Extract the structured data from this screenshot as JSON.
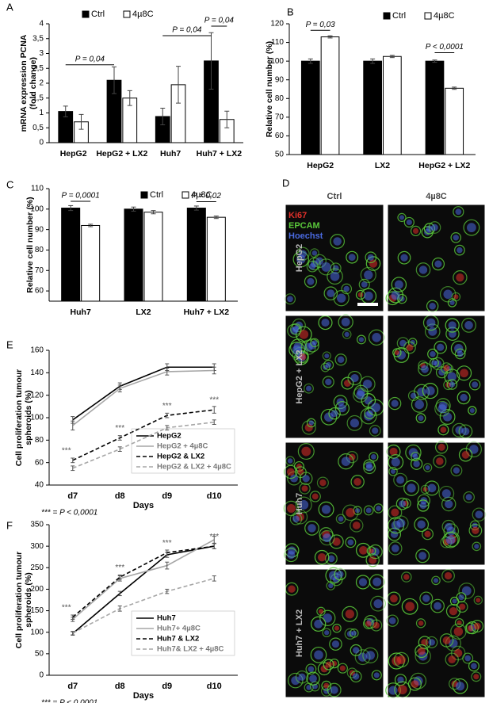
{
  "panels": [
    "A",
    "B",
    "C",
    "D",
    "E",
    "F"
  ],
  "chart_data": [
    {
      "type": "bar",
      "ylabel": [
        "mRNA expression PCNA",
        "(fold change)"
      ],
      "categories": [
        "HepG2",
        "HepG2 + LX2",
        "Huh7",
        "Huh7 + LX2"
      ],
      "series": [
        {
          "name": "Ctrl",
          "color": "#000000",
          "values": [
            1.05,
            2.1,
            0.88,
            2.75
          ],
          "errors": [
            0.18,
            0.45,
            0.28,
            0.95
          ]
        },
        {
          "name": "4µ8C",
          "color": "#ffffff",
          "values": [
            0.7,
            1.5,
            1.95,
            0.78
          ],
          "errors": [
            0.25,
            0.25,
            0.62,
            0.28
          ]
        }
      ],
      "ylim": [
        0,
        4
      ],
      "yticks": [
        0,
        {
          "value": 0.5,
          "label": "0,5"
        },
        1,
        {
          "value": 1.5,
          "label": "1,5"
        },
        2,
        {
          "value": 2.5,
          "label": "2,5"
        },
        3,
        {
          "value": 3.5,
          "label": "3,5"
        },
        4
      ],
      "annotations": [
        "P = 0,04",
        "P = 0,04",
        "P = 0,04"
      ]
    },
    {
      "type": "bar",
      "ylabel": [
        "Relative cell number (%)"
      ],
      "categories": [
        "HepG2",
        "LX2",
        "HepG2 + LX2"
      ],
      "series": [
        {
          "name": "Ctrl",
          "color": "#000000",
          "values": [
            100,
            100,
            100
          ],
          "errors": [
            1.2,
            1.2,
            0.6
          ]
        },
        {
          "name": "4µ8C",
          "color": "#ffffff",
          "values": [
            113,
            102.5,
            85.5
          ],
          "errors": [
            0.6,
            0.6,
            0.6
          ]
        }
      ],
      "ylim": [
        50,
        120
      ],
      "yticks": [
        50,
        60,
        70,
        80,
        90,
        100,
        110,
        120
      ],
      "annotations": [
        "P = 0,03",
        "P < 0,0001"
      ]
    },
    {
      "type": "bar",
      "ylabel": [
        "Relative cell number (%)"
      ],
      "categories": [
        "Huh7",
        "LX2",
        "Huh7 + LX2"
      ],
      "series": [
        {
          "name": "Ctrl",
          "color": "#000000",
          "values": [
            100.5,
            100,
            100.5
          ],
          "errors": [
            1.2,
            1.0,
            1.0
          ]
        },
        {
          "name": "4µ8C",
          "color": "#ffffff",
          "values": [
            92,
            98.5,
            96
          ],
          "errors": [
            0.6,
            0.8,
            0.6
          ]
        }
      ],
      "ylim": [
        55,
        110
      ],
      "yticks": [
        60,
        70,
        80,
        90,
        100,
        110
      ],
      "annotations": [
        "P = 0,0001",
        "P = 0,02"
      ]
    },
    {
      "type": "line",
      "ylabel": [
        "Cell proliferation tumour",
        "spheroids (%)"
      ],
      "xlabel": "Days",
      "categories": [
        "d7",
        "d8",
        "d9",
        "d10"
      ],
      "series": [
        {
          "name": "HepG2",
          "color": "#000000",
          "linestyle": "solid",
          "values": [
            98,
            128,
            145,
            145
          ],
          "errors": [
            3,
            3,
            3,
            3
          ]
        },
        {
          "name": "HepG2 + 4µ8C",
          "color": "#a6a6a6",
          "linestyle": "solid",
          "values": [
            93,
            126,
            141,
            142
          ],
          "errors": [
            4,
            3,
            3,
            3
          ]
        },
        {
          "name": "HepG2 & LX2",
          "color": "#000000",
          "linestyle": "dashed",
          "values": [
            62,
            82,
            102,
            107
          ],
          "errors": [
            2,
            2,
            2,
            3
          ]
        },
        {
          "name": "HepG2 & LX2 + 4µ8C",
          "color": "#a6a6a6",
          "linestyle": "dashed",
          "values": [
            55,
            72,
            91,
            96
          ],
          "errors": [
            2,
            2,
            2,
            2
          ]
        }
      ],
      "ylim": [
        40,
        160
      ],
      "yticks": [
        40,
        60,
        80,
        100,
        120,
        140,
        160
      ],
      "annotations": [
        "***",
        "***",
        "***",
        "***"
      ],
      "footnote": "*** = P < 0,0001"
    },
    {
      "type": "line",
      "ylabel": [
        "Cell proliferation tumour",
        "spheroids (%)"
      ],
      "xlabel": "Days",
      "categories": [
        "d7",
        "d8",
        "d9",
        "d10"
      ],
      "series": [
        {
          "name": "Huh7",
          "color": "#000000",
          "linestyle": "solid",
          "values": [
            97,
            190,
            280,
            300
          ],
          "errors": [
            4,
            5,
            6,
            6
          ]
        },
        {
          "name": "Huh7+ 4µ8C",
          "color": "#a6a6a6",
          "linestyle": "solid",
          "values": [
            130,
            225,
            255,
            315
          ],
          "errors": [
            5,
            6,
            8,
            8
          ]
        },
        {
          "name": "Huh7 & LX2",
          "color": "#000000",
          "linestyle": "dashed",
          "values": [
            135,
            228,
            285,
            300
          ],
          "errors": [
            5,
            5,
            6,
            6
          ]
        },
        {
          "name": "Huh7& LX2 + 4µ8C",
          "color": "#a6a6a6",
          "linestyle": "dashed",
          "values": [
            98,
            155,
            195,
            225
          ],
          "errors": [
            4,
            6,
            5,
            6
          ]
        }
      ],
      "ylim": [
        0,
        350
      ],
      "yticks": [
        0,
        50,
        100,
        150,
        200,
        250,
        300,
        350
      ],
      "annotations": [
        "***",
        "***",
        "***",
        "***"
      ],
      "footnote": "*** = P < 0,0001"
    }
  ],
  "image_panel": {
    "columns": [
      "Ctrl",
      "4µ8C"
    ],
    "rows": [
      "HepG2",
      "HepG2 + LX2",
      "Huh7",
      "Huh7 + LX2"
    ],
    "channels": [
      {
        "name": "Ki67",
        "color": "#e0302a"
      },
      {
        "name": "EPCAM",
        "color": "#5ac83a"
      },
      {
        "name": "Hoechst",
        "color": "#4a6ae0"
      }
    ]
  }
}
